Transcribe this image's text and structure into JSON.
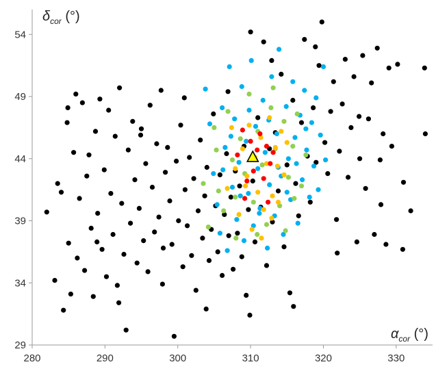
{
  "chart_data": {
    "type": "scatter",
    "xlabel": {
      "symbol": "α",
      "subscript": "cor",
      "unit": " (°)"
    },
    "ylabel": {
      "symbol": "δ",
      "subscript": "cor",
      "unit": " (°)"
    },
    "xlim": [
      280,
      335
    ],
    "ylim": [
      29,
      56
    ],
    "x_ticks": [
      280,
      290,
      300,
      310,
      320,
      330
    ],
    "y_ticks": [
      29,
      34,
      39,
      44,
      49,
      54
    ],
    "grid": false,
    "legend": "none",
    "colors": {
      "black": "#000000",
      "blue": "#00b0f0",
      "green": "#92d050",
      "yellow": "#ffc000",
      "red": "#ff0000",
      "marker": "#ffff00"
    },
    "series": [
      {
        "color": "black",
        "points": [
          [
            282.0,
            39.7
          ],
          [
            283.1,
            34.2
          ],
          [
            283.5,
            42.0
          ],
          [
            284.0,
            41.3
          ],
          [
            284.3,
            31.8
          ],
          [
            284.8,
            46.9
          ],
          [
            285.0,
            37.2
          ],
          [
            285.3,
            33.1
          ],
          [
            285.7,
            44.5
          ],
          [
            286.0,
            49.2
          ],
          [
            286.2,
            36.0
          ],
          [
            286.5,
            40.8
          ],
          [
            286.9,
            48.5
          ],
          [
            287.2,
            35.0
          ],
          [
            287.5,
            42.6
          ],
          [
            287.8,
            44.3
          ],
          [
            288.1,
            38.4
          ],
          [
            288.4,
            32.9
          ],
          [
            288.7,
            46.2
          ],
          [
            289.0,
            39.6
          ],
          [
            289.3,
            48.8
          ],
          [
            289.6,
            36.7
          ],
          [
            289.9,
            43.1
          ],
          [
            290.2,
            34.5
          ],
          [
            290.5,
            47.9
          ],
          [
            290.8,
            41.2
          ],
          [
            291.1,
            37.9
          ],
          [
            291.4,
            45.8
          ],
          [
            291.7,
            33.8
          ],
          [
            292.0,
            49.7
          ],
          [
            292.3,
            40.4
          ],
          [
            292.6,
            36.3
          ],
          [
            292.9,
            30.2
          ],
          [
            293.2,
            44.7
          ],
          [
            293.5,
            38.8
          ],
          [
            293.8,
            47.0
          ],
          [
            294.1,
            42.3
          ],
          [
            294.4,
            35.6
          ],
          [
            294.7,
            40.0
          ],
          [
            295.0,
            46.4
          ],
          [
            295.3,
            37.4
          ],
          [
            295.6,
            43.6
          ],
          [
            295.9,
            34.9
          ],
          [
            296.2,
            48.3
          ],
          [
            296.5,
            41.7
          ],
          [
            296.8,
            38.1
          ],
          [
            297.1,
            45.2
          ],
          [
            297.4,
            39.3
          ],
          [
            297.7,
            49.5
          ],
          [
            298.0,
            36.8
          ],
          [
            298.3,
            42.9
          ],
          [
            298.6,
            44.9
          ],
          [
            298.9,
            40.6
          ],
          [
            299.2,
            37.1
          ],
          [
            299.5,
            29.7
          ],
          [
            299.8,
            43.8
          ],
          [
            300.1,
            39.0
          ],
          [
            300.4,
            46.7
          ],
          [
            300.7,
            35.3
          ],
          [
            301.0,
            41.5
          ],
          [
            301.3,
            38.6
          ],
          [
            301.6,
            44.1
          ],
          [
            301.9,
            36.2
          ],
          [
            302.2,
            42.4
          ],
          [
            302.5,
            33.4
          ],
          [
            302.8,
            39.8
          ],
          [
            303.1,
            45.5
          ],
          [
            303.4,
            37.6
          ],
          [
            303.7,
            41.0
          ],
          [
            304.0,
            43.3
          ],
          [
            304.3,
            35.8
          ],
          [
            304.6,
            38.3
          ],
          [
            304.9,
            47.6
          ],
          [
            305.2,
            40.2
          ],
          [
            305.5,
            36.5
          ],
          [
            305.8,
            42.7
          ],
          [
            306.1,
            34.6
          ],
          [
            306.4,
            39.5
          ],
          [
            306.7,
            44.4
          ],
          [
            307.0,
            37.8
          ],
          [
            307.3,
            40.9
          ],
          [
            307.6,
            35.1
          ],
          [
            307.9,
            43.0
          ],
          [
            308.2,
            38.0
          ],
          [
            308.5,
            41.8
          ],
          [
            308.8,
            36.1
          ],
          [
            309.1,
            45.0
          ],
          [
            309.4,
            33.0
          ],
          [
            309.7,
            39.9
          ],
          [
            310.0,
            54.2
          ],
          [
            310.3,
            42.2
          ],
          [
            310.6,
            37.3
          ],
          [
            311.0,
            47.3
          ],
          [
            311.4,
            40.1
          ],
          [
            311.8,
            53.4
          ],
          [
            312.2,
            35.4
          ],
          [
            312.6,
            44.8
          ],
          [
            313.0,
            38.9
          ],
          [
            313.4,
            46.1
          ],
          [
            313.8,
            41.4
          ],
          [
            314.2,
            50.8
          ],
          [
            314.6,
            36.9
          ],
          [
            315.0,
            43.5
          ],
          [
            315.4,
            33.2
          ],
          [
            315.8,
            48.7
          ],
          [
            316.2,
            42.0
          ],
          [
            316.6,
            39.4
          ],
          [
            317.0,
            46.9
          ],
          [
            317.4,
            53.6
          ],
          [
            317.8,
            44.2
          ],
          [
            318.2,
            40.5
          ],
          [
            318.6,
            48.1
          ],
          [
            319.0,
            43.7
          ],
          [
            319.4,
            51.5
          ],
          [
            319.8,
            55.0
          ],
          [
            320.2,
            45.3
          ],
          [
            320.6,
            42.8
          ],
          [
            321.0,
            47.8
          ],
          [
            321.4,
            50.2
          ],
          [
            321.8,
            39.1
          ],
          [
            322.2,
            44.6
          ],
          [
            322.6,
            48.4
          ],
          [
            323.0,
            52.0
          ],
          [
            323.4,
            42.5
          ],
          [
            323.8,
            46.5
          ],
          [
            324.2,
            50.6
          ],
          [
            324.6,
            37.3
          ],
          [
            325.0,
            44.0
          ],
          [
            325.4,
            52.3
          ],
          [
            325.8,
            41.6
          ],
          [
            326.2,
            47.2
          ],
          [
            326.6,
            50.1
          ],
          [
            327.0,
            37.9
          ],
          [
            327.4,
            52.9
          ],
          [
            327.8,
            43.9
          ],
          [
            328.2,
            46.0
          ],
          [
            328.6,
            37.1
          ],
          [
            329.0,
            51.3
          ],
          [
            329.4,
            45.0
          ],
          [
            330.2,
            51.6
          ],
          [
            331.0,
            42.1
          ],
          [
            332.0,
            39.8
          ],
          [
            333.9,
            51.3
          ],
          [
            334.0,
            46.0
          ],
          [
            284.9,
            48.1
          ],
          [
            288.9,
            37.3
          ],
          [
            291.9,
            32.4
          ],
          [
            294.9,
            45.9
          ],
          [
            297.9,
            33.9
          ],
          [
            300.9,
            48.9
          ],
          [
            303.9,
            31.9
          ],
          [
            306.9,
            49.4
          ],
          [
            309.9,
            31.4
          ],
          [
            312.9,
            51.9
          ],
          [
            315.9,
            32.1
          ],
          [
            318.9,
            53.0
          ],
          [
            321.9,
            36.4
          ],
          [
            324.9,
            47.4
          ],
          [
            327.9,
            40.3
          ],
          [
            330.9,
            36.7
          ]
        ]
      },
      {
        "color": "blue",
        "points": [
          [
            303.8,
            49.6
          ],
          [
            304.4,
            46.8
          ],
          [
            304.9,
            42.8
          ],
          [
            305.4,
            40.3
          ],
          [
            305.8,
            38.0
          ],
          [
            306.1,
            48.1
          ],
          [
            306.5,
            44.9
          ],
          [
            306.8,
            36.6
          ],
          [
            307.1,
            51.4
          ],
          [
            307.5,
            41.7
          ],
          [
            307.8,
            47.2
          ],
          [
            308.1,
            39.1
          ],
          [
            308.4,
            43.7
          ],
          [
            308.8,
            49.8
          ],
          [
            309.1,
            37.4
          ],
          [
            309.4,
            45.4
          ],
          [
            309.7,
            41.2
          ],
          [
            310.1,
            51.9
          ],
          [
            310.4,
            38.6
          ],
          [
            310.7,
            46.6
          ],
          [
            311.0,
            43.2
          ],
          [
            311.3,
            40.0
          ],
          [
            311.7,
            48.7
          ],
          [
            312.0,
            44.5
          ],
          [
            312.3,
            36.8
          ],
          [
            312.6,
            41.9
          ],
          [
            312.9,
            50.6
          ],
          [
            313.3,
            39.4
          ],
          [
            313.6,
            46.0
          ],
          [
            313.9,
            52.8
          ],
          [
            314.2,
            42.6
          ],
          [
            314.5,
            37.9
          ],
          [
            314.9,
            48.2
          ],
          [
            315.2,
            44.0
          ],
          [
            315.5,
            40.7
          ],
          [
            315.8,
            50.2
          ],
          [
            316.1,
            45.7
          ],
          [
            316.5,
            38.8
          ],
          [
            316.8,
            47.5
          ],
          [
            317.1,
            42.3
          ],
          [
            317.4,
            49.5
          ],
          [
            317.7,
            44.7
          ],
          [
            318.1,
            40.9
          ],
          [
            318.4,
            46.9
          ],
          [
            318.7,
            43.4
          ],
          [
            319.0,
            48.9
          ],
          [
            319.3,
            41.5
          ],
          [
            319.6,
            45.9
          ],
          [
            320.0,
            51.4
          ],
          [
            320.3,
            43.9
          ],
          [
            306.2,
            43.1
          ],
          [
            307.3,
            45.8
          ],
          [
            308.6,
            41.0
          ],
          [
            309.8,
            47.9
          ],
          [
            311.2,
            39.6
          ],
          [
            312.5,
            47.1
          ],
          [
            313.8,
            43.3
          ],
          [
            315.0,
            41.3
          ],
          [
            316.3,
            43.6
          ],
          [
            317.6,
            46.4
          ]
        ]
      },
      {
        "color": "green",
        "points": [
          [
            303.5,
            42.0
          ],
          [
            304.2,
            38.5
          ],
          [
            305.0,
            46.5
          ],
          [
            305.6,
            41.4
          ],
          [
            306.3,
            39.8
          ],
          [
            306.9,
            47.8
          ],
          [
            307.5,
            43.9
          ],
          [
            308.0,
            37.6
          ],
          [
            308.6,
            45.6
          ],
          [
            309.2,
            42.8
          ],
          [
            309.8,
            49.2
          ],
          [
            310.4,
            40.5
          ],
          [
            311.0,
            46.2
          ],
          [
            311.6,
            43.5
          ],
          [
            312.2,
            38.7
          ],
          [
            312.8,
            48.1
          ],
          [
            313.4,
            44.8
          ],
          [
            314.0,
            40.2
          ],
          [
            314.6,
            47.0
          ],
          [
            315.2,
            42.5
          ],
          [
            315.8,
            45.0
          ],
          [
            316.4,
            47.6
          ],
          [
            317.0,
            41.8
          ],
          [
            317.6,
            44.3
          ],
          [
            314.8,
            38.2
          ],
          [
            313.1,
            49.7
          ],
          [
            307.9,
            40.9
          ],
          [
            310.9,
            37.9
          ],
          [
            316.0,
            40.8
          ],
          [
            305.3,
            44.7
          ]
        ]
      },
      {
        "color": "yellow",
        "points": [
          [
            306.8,
            41.6
          ],
          [
            307.4,
            46.5
          ],
          [
            307.9,
            43.2
          ],
          [
            308.4,
            39.5
          ],
          [
            308.9,
            44.8
          ],
          [
            309.3,
            41.8
          ],
          [
            309.8,
            46.7
          ],
          [
            310.2,
            38.3
          ],
          [
            310.6,
            44.1
          ],
          [
            311.0,
            41.3
          ],
          [
            311.4,
            45.7
          ],
          [
            311.8,
            39.9
          ],
          [
            312.2,
            43.6
          ],
          [
            312.6,
            47.3
          ],
          [
            313.0,
            41.0
          ],
          [
            313.4,
            44.9
          ],
          [
            313.8,
            40.5
          ],
          [
            314.2,
            46.2
          ],
          [
            314.6,
            42.7
          ],
          [
            315.0,
            45.3
          ],
          [
            311.5,
            37.6
          ],
          [
            312.9,
            39.2
          ],
          [
            309.5,
            42.6
          ],
          [
            313.7,
            43.4
          ]
        ]
      },
      {
        "color": "red",
        "points": [
          [
            308.2,
            44.3
          ],
          [
            308.9,
            46.3
          ],
          [
            309.5,
            42.2
          ],
          [
            310.0,
            45.4
          ],
          [
            310.4,
            43.0
          ],
          [
            310.9,
            44.7
          ],
          [
            311.3,
            46.0
          ],
          [
            311.8,
            42.4
          ],
          [
            312.2,
            45.0
          ],
          [
            312.7,
            43.6
          ],
          [
            313.1,
            44.5
          ],
          [
            309.2,
            40.8
          ],
          [
            312.4,
            40.5
          ]
        ]
      }
    ],
    "marker": {
      "x": 310.3,
      "y": 44.1,
      "shape": "triangle"
    }
  }
}
